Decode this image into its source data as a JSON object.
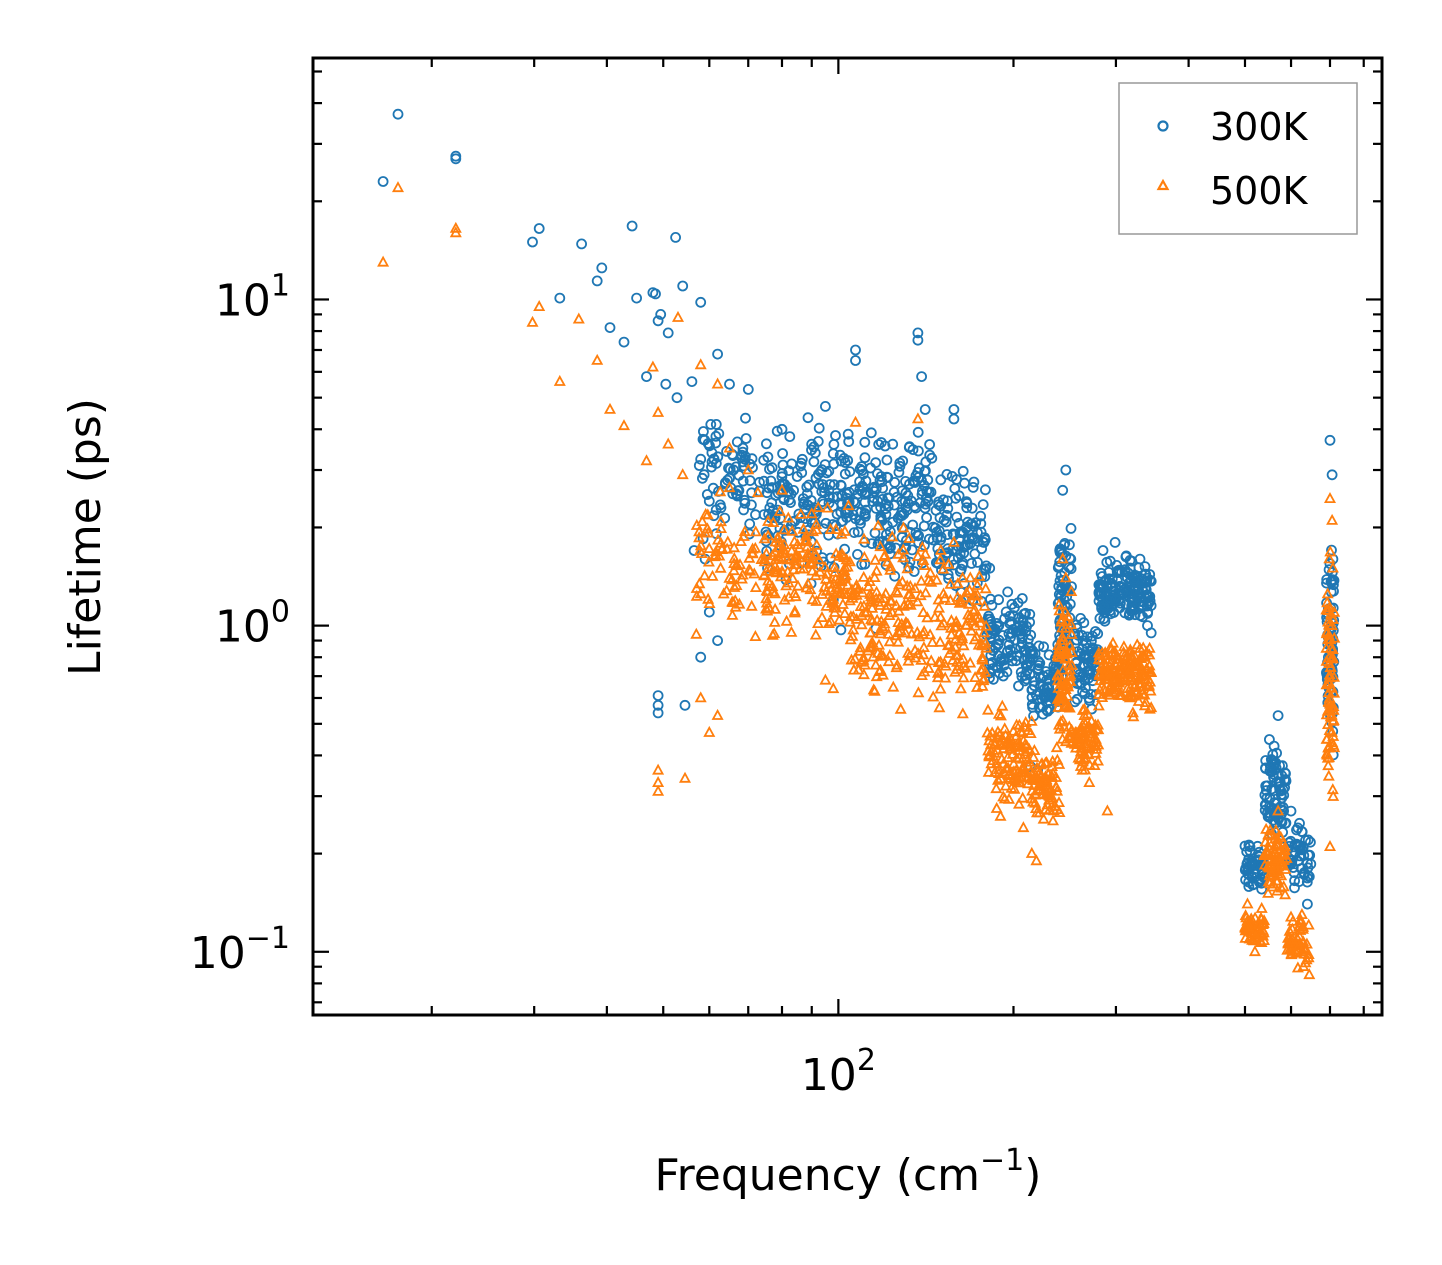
{
  "chart_data": {
    "type": "scatter",
    "title": "",
    "xlabel": "Frequency (cm",
    "xlabel_sup": "−1",
    "xlabel_end": ")",
    "ylabel": "Lifetime (ps)",
    "xscale": "log",
    "yscale": "log",
    "xlim": [
      12.5,
      860
    ],
    "ylim": [
      0.064,
      55
    ],
    "legend_position": "top-right",
    "x_ticks": [
      {
        "value": 100,
        "base": "10",
        "exp": "2"
      }
    ],
    "y_ticks": [
      {
        "value": 0.1,
        "base": "10",
        "exp": "−1"
      },
      {
        "value": 1,
        "base": "10",
        "exp": "0"
      },
      {
        "value": 10,
        "base": "10",
        "exp": "1"
      }
    ],
    "series": [
      {
        "name": "300K",
        "marker": "circle",
        "color": "#1f77b4",
        "points": [
          [
            16.5,
            23.0
          ],
          [
            17.5,
            37.0
          ],
          [
            22.0,
            27.5
          ],
          [
            22.0,
            27.0
          ],
          [
            29.8,
            15.0
          ],
          [
            30.6,
            16.5
          ],
          [
            33.2,
            10.1
          ],
          [
            36.2,
            14.8
          ],
          [
            38.5,
            11.4
          ],
          [
            39.2,
            12.5
          ],
          [
            40.5,
            8.2
          ],
          [
            42.8,
            7.4
          ],
          [
            44.2,
            16.8
          ],
          [
            45.0,
            10.1
          ],
          [
            46.8,
            5.8
          ],
          [
            48.0,
            10.5
          ],
          [
            48.5,
            10.4
          ],
          [
            49.0,
            8.6
          ],
          [
            49.5,
            9.0
          ],
          [
            50.5,
            5.5
          ],
          [
            51.0,
            7.9
          ],
          [
            52.5,
            15.5
          ],
          [
            52.8,
            5.0
          ],
          [
            54.0,
            11.0
          ],
          [
            56.0,
            5.6
          ],
          [
            58.0,
            9.8
          ],
          [
            62.0,
            6.8
          ],
          [
            49.0,
            0.61
          ],
          [
            49.0,
            0.57
          ],
          [
            49.0,
            0.54
          ],
          [
            54.5,
            0.57
          ],
          [
            60.0,
            1.1
          ],
          [
            62.0,
            0.9
          ],
          [
            58.0,
            0.8
          ],
          [
            59.0,
            1.6
          ],
          [
            56.5,
            1.7
          ],
          [
            65.0,
            5.5
          ],
          [
            70.0,
            5.3
          ],
          [
            80.0,
            4.0
          ],
          [
            90.0,
            3.6
          ],
          [
            95.0,
            4.7
          ],
          [
            98.0,
            1.2
          ],
          [
            101.0,
            0.97
          ],
          [
            107.0,
            7.0
          ],
          [
            107.0,
            6.5
          ],
          [
            116.0,
            0.98
          ],
          [
            124.0,
            3.6
          ],
          [
            137.0,
            7.9
          ],
          [
            137.0,
            7.5
          ],
          [
            139.0,
            5.8
          ],
          [
            141.0,
            4.6
          ],
          [
            150.0,
            2.8
          ],
          [
            158.0,
            4.6
          ],
          [
            158.0,
            4.3
          ],
          [
            166.0,
            2.4
          ],
          [
            178.0,
            1.8
          ],
          [
            182.0,
            1.5
          ],
          [
            214.0,
            0.37
          ],
          [
            220.0,
            0.36
          ],
          [
            228.0,
            0.68
          ],
          [
            243.0,
            2.6
          ],
          [
            246.0,
            3.0
          ],
          [
            285.0,
            1.7
          ],
          [
            299.0,
            1.8
          ],
          [
            330.0,
            1.6
          ],
          [
            340.0,
            1.0
          ],
          [
            345.0,
            0.95
          ],
          [
            510.0,
            0.21
          ],
          [
            570.0,
            0.53
          ],
          [
            600.0,
            0.27
          ],
          [
            640.0,
            0.14
          ],
          [
            645.0,
            0.17
          ],
          [
            700.0,
            3.7
          ],
          [
            706.0,
            2.9
          ],
          [
            708.0,
            1.6
          ]
        ],
        "clusters": [
          {
            "x": [
              57,
              75
            ],
            "y": [
              1.6,
              5.0
            ],
            "n": 80
          },
          {
            "x": [
              75,
              105
            ],
            "y": [
              1.2,
              5.0
            ],
            "n": 170
          },
          {
            "x": [
              105,
              145
            ],
            "y": [
              1.3,
              4.5
            ],
            "n": 170
          },
          {
            "x": [
              145,
              180
            ],
            "y": [
              1.0,
              3.4
            ],
            "n": 110
          },
          {
            "x": [
              180,
              215
            ],
            "y": [
              0.55,
              1.35
            ],
            "n": 120
          },
          {
            "x": [
              215,
              240
            ],
            "y": [
              0.42,
              1.0
            ],
            "n": 70
          },
          {
            "x": [
              238,
              252
            ],
            "y": [
              0.5,
              2.6
            ],
            "n": 80
          },
          {
            "x": [
              255,
              280
            ],
            "y": [
              0.48,
              1.2
            ],
            "n": 70
          },
          {
            "x": [
              280,
              345
            ],
            "y": [
              0.95,
              1.7
            ],
            "n": 180
          },
          {
            "x": [
              500,
              540
            ],
            "y": [
              0.14,
              0.25
            ],
            "n": 50
          },
          {
            "x": [
              540,
              590
            ],
            "y": [
              0.18,
              0.52
            ],
            "n": 80
          },
          {
            "x": [
              590,
              650
            ],
            "y": [
              0.14,
              0.27
            ],
            "n": 50
          },
          {
            "x": [
              690,
              712
            ],
            "y": [
              0.32,
              2.5
            ],
            "n": 80
          }
        ]
      },
      {
        "name": "500K",
        "marker": "triangle",
        "color": "#ff7f0e",
        "points": [
          [
            16.5,
            13.0
          ],
          [
            17.5,
            22.0
          ],
          [
            22.0,
            16.5
          ],
          [
            22.0,
            16.0
          ],
          [
            29.8,
            8.5
          ],
          [
            30.6,
            9.5
          ],
          [
            33.2,
            5.6
          ],
          [
            35.8,
            8.7
          ],
          [
            38.5,
            6.5
          ],
          [
            40.5,
            4.6
          ],
          [
            42.8,
            4.1
          ],
          [
            46.8,
            3.2
          ],
          [
            48.0,
            6.2
          ],
          [
            49.0,
            4.5
          ],
          [
            51.0,
            3.6
          ],
          [
            53.0,
            8.8
          ],
          [
            54.0,
            2.9
          ],
          [
            58.0,
            6.3
          ],
          [
            62.0,
            5.5
          ],
          [
            49.0,
            0.36
          ],
          [
            49.0,
            0.33
          ],
          [
            49.0,
            0.31
          ],
          [
            54.5,
            0.34
          ],
          [
            60.0,
            0.47
          ],
          [
            62.0,
            0.53
          ],
          [
            58.0,
            0.6
          ],
          [
            57.0,
            0.94
          ],
          [
            65.0,
            3.5
          ],
          [
            70.0,
            3.0
          ],
          [
            80.0,
            2.6
          ],
          [
            90.0,
            2.2
          ],
          [
            95.0,
            0.68
          ],
          [
            98.0,
            0.64
          ],
          [
            107.0,
            4.2
          ],
          [
            137.0,
            4.3
          ],
          [
            150.0,
            1.7
          ],
          [
            158.0,
            1.8
          ],
          [
            166.0,
            1.0
          ],
          [
            178.0,
            0.95
          ],
          [
            190.0,
            0.26
          ],
          [
            208.0,
            0.24
          ],
          [
            215.0,
            0.2
          ],
          [
            219.0,
            0.19
          ],
          [
            228.0,
            0.38
          ],
          [
            243.0,
            1.6
          ],
          [
            246.0,
            1.4
          ],
          [
            270.0,
            0.33
          ],
          [
            290.0,
            0.27
          ],
          [
            330.0,
            0.85
          ],
          [
            345.0,
            0.56
          ],
          [
            505.0,
            0.14
          ],
          [
            520.0,
            0.1
          ],
          [
            570.0,
            0.27
          ],
          [
            630.0,
            0.09
          ],
          [
            645.0,
            0.085
          ],
          [
            700.0,
            2.45
          ],
          [
            706.0,
            2.1
          ],
          [
            708.0,
            1.5
          ],
          [
            700.0,
            0.21
          ]
        ],
        "clusters": [
          {
            "x": [
              57,
              75
            ],
            "y": [
              0.85,
              3.0
            ],
            "n": 80
          },
          {
            "x": [
              75,
              105
            ],
            "y": [
              0.8,
              2.6
            ],
            "n": 170
          },
          {
            "x": [
              105,
              145
            ],
            "y": [
              0.5,
              2.5
            ],
            "n": 170
          },
          {
            "x": [
              145,
              180
            ],
            "y": [
              0.45,
              2.0
            ],
            "n": 110
          },
          {
            "x": [
              180,
              215
            ],
            "y": [
              0.25,
              0.6
            ],
            "n": 120
          },
          {
            "x": [
              215,
              240
            ],
            "y": [
              0.22,
              0.45
            ],
            "n": 70
          },
          {
            "x": [
              238,
              252
            ],
            "y": [
              0.32,
              1.5
            ],
            "n": 80
          },
          {
            "x": [
              255,
              280
            ],
            "y": [
              0.33,
              0.6
            ],
            "n": 70
          },
          {
            "x": [
              280,
              345
            ],
            "y": [
              0.5,
              1.0
            ],
            "n": 180
          },
          {
            "x": [
              500,
              540
            ],
            "y": [
              0.1,
              0.14
            ],
            "n": 50
          },
          {
            "x": [
              540,
              590
            ],
            "y": [
              0.13,
              0.27
            ],
            "n": 80
          },
          {
            "x": [
              590,
              650
            ],
            "y": [
              0.085,
              0.14
            ],
            "n": 50
          },
          {
            "x": [
              690,
              712
            ],
            "y": [
              0.21,
              2.0
            ],
            "n": 80
          }
        ]
      }
    ]
  }
}
